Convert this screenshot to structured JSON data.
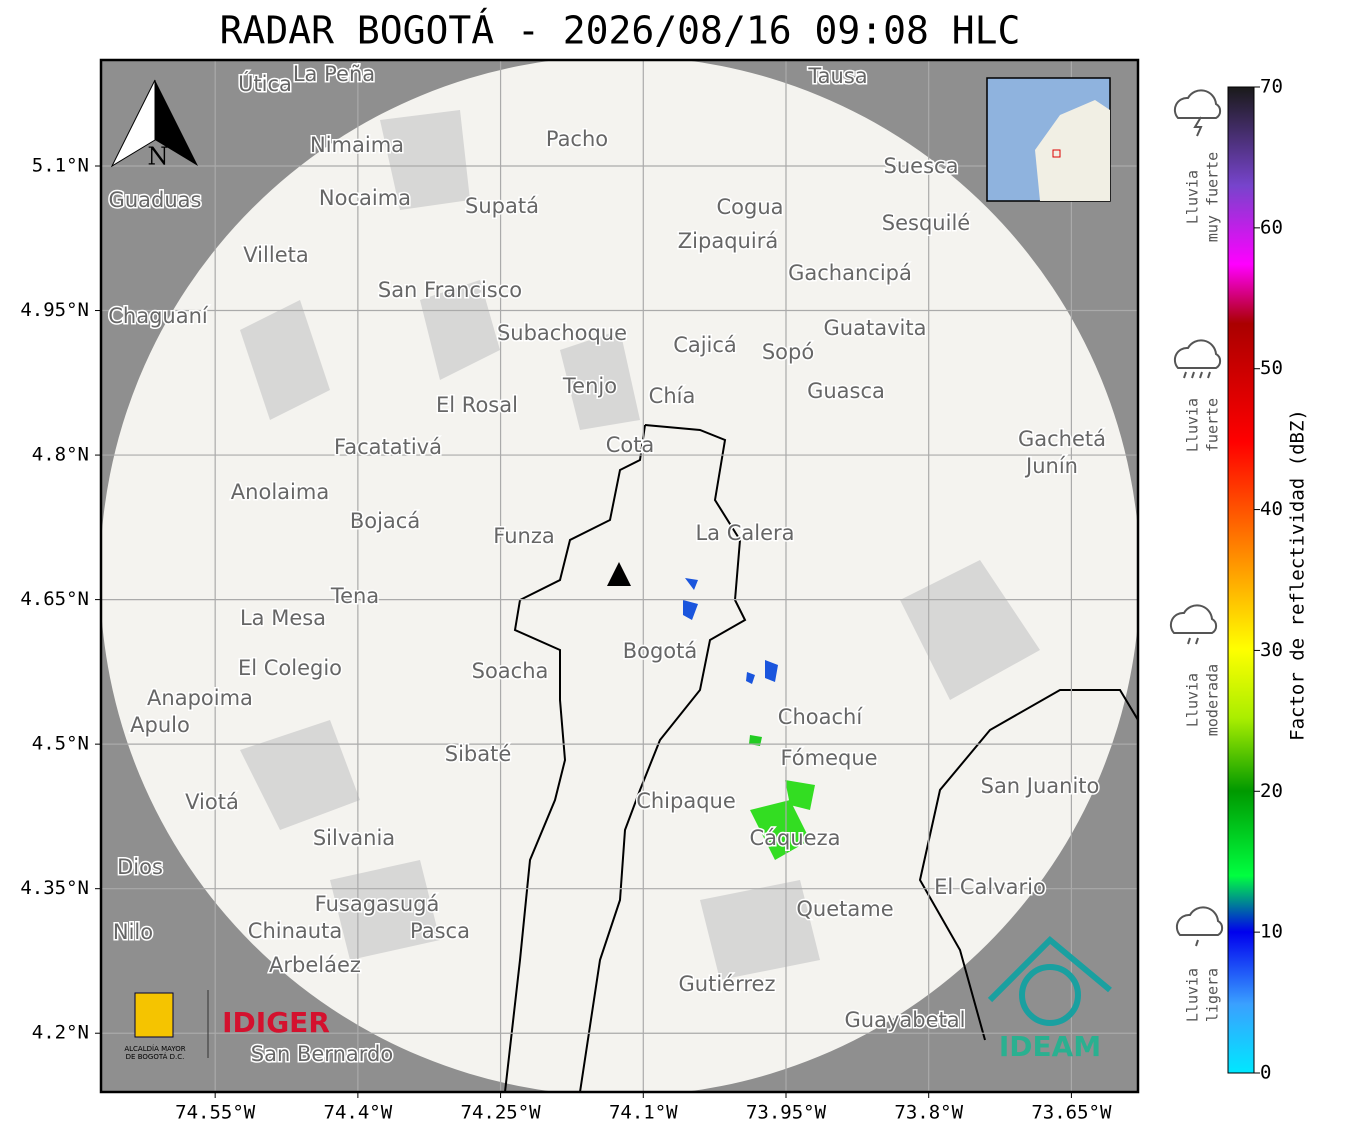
{
  "header": {
    "title": "RADAR BOGOTÁ - 2026/08/16 09:08 HLC"
  },
  "map": {
    "xlim": [
      -74.67,
      -73.58
    ],
    "ylim": [
      4.139,
      5.21
    ],
    "xticks": [
      {
        "value": -74.55,
        "label": "74.55°W"
      },
      {
        "value": -74.4,
        "label": "74.4°W"
      },
      {
        "value": -74.25,
        "label": "74.25°W"
      },
      {
        "value": -74.1,
        "label": "74.1°W"
      },
      {
        "value": -73.95,
        "label": "73.95°W"
      },
      {
        "value": -73.8,
        "label": "73.8°W"
      },
      {
        "value": -73.65,
        "label": "73.65°W"
      }
    ],
    "yticks": [
      {
        "value": 5.1,
        "label": "5.1°N"
      },
      {
        "value": 4.95,
        "label": "4.95°N"
      },
      {
        "value": 4.8,
        "label": "4.8°N"
      },
      {
        "value": 4.65,
        "label": "4.65°N"
      },
      {
        "value": 4.5,
        "label": "4.5°N"
      },
      {
        "value": 4.35,
        "label": "4.35°N"
      },
      {
        "value": 4.2,
        "label": "4.2°N"
      }
    ],
    "north": "N",
    "places": [
      "La Peña",
      "Útica",
      "Tausa",
      "Pacho",
      "Nimaima",
      "Suesca",
      "Guaduas",
      "Nocaima",
      "Supatá",
      "Cogua",
      "Sesquilé",
      "Zipaquirá",
      "Villeta",
      "Gachancipá",
      "San Francisco",
      "Chaguaní",
      "Guatavita",
      "Subachoque",
      "Cajicá",
      "Sopó",
      "Tenjo",
      "Chía",
      "Guasca",
      "El Rosal",
      "Cota",
      "Gachetá",
      "Facatativá",
      "Junín",
      "Anolaima",
      "Bojacá",
      "Funza",
      "La Calera",
      "Tena",
      "La Mesa",
      "Bogotá",
      "Soacha",
      "El Colegio",
      "Anapoima",
      "Apulo",
      "Choachí",
      "Fómeque",
      "Sibaté",
      "San Juanito",
      "Viotá",
      "Chipaque",
      "Silvania",
      "Cáqueza",
      "Dios",
      "El Calvario",
      "Fusagasugá",
      "Quetame",
      "Nilo",
      "Chinauta",
      "Pasca",
      "Arbeláez",
      "Gutiérrez",
      "Guayabetal",
      "San Bernardo"
    ],
    "logos": {
      "idiger": "IDIGER",
      "alcaldia": [
        "ALCALDÍA MAYOR",
        "DE BOGOTÁ D.C."
      ],
      "ideam": "IDEAM"
    }
  },
  "colorbar": {
    "label": "Factor de reflectividad (dBZ)",
    "lim": [
      0,
      70
    ],
    "ticks": [
      0,
      10,
      20,
      30,
      40,
      50,
      60,
      70
    ],
    "categories": [
      [
        "Lluvia",
        "muy fuerte"
      ],
      [
        "Lluvia",
        "fuerte"
      ],
      [
        "Lluvia",
        "moderada"
      ],
      [
        "Lluvia",
        "ligera"
      ]
    ]
  }
}
